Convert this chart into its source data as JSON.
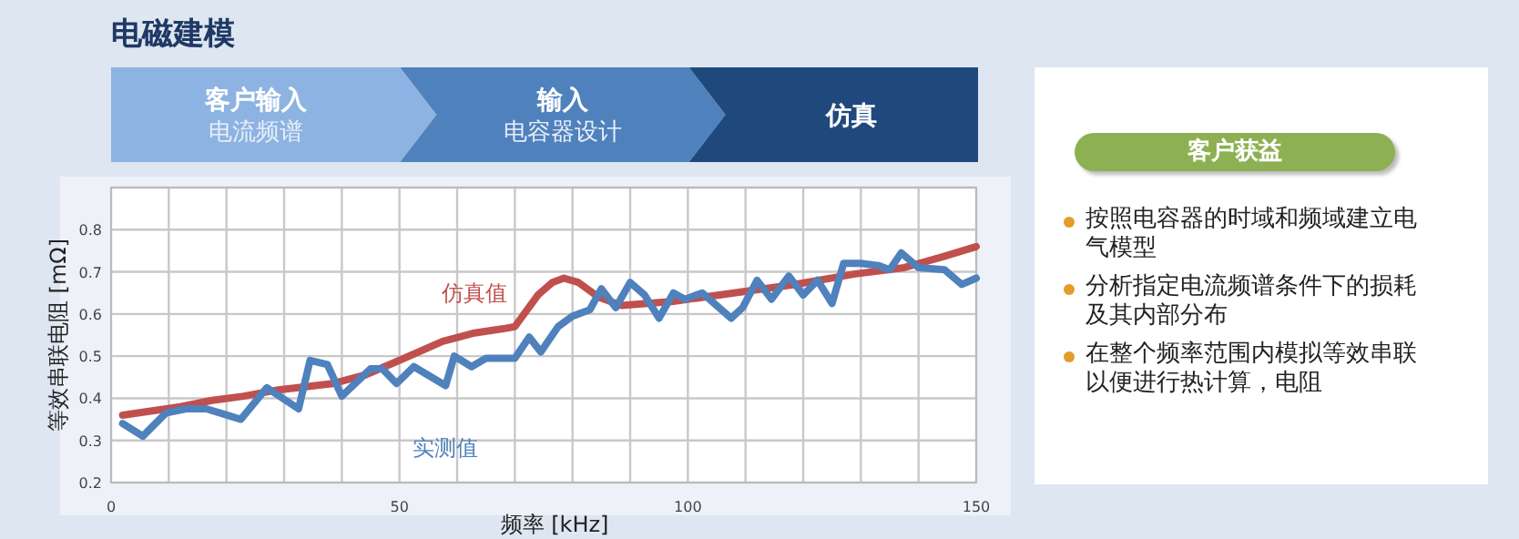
{
  "chart_data": [
    {
      "type": "other",
      "title": "电磁建模",
      "categories": [
        "客户输入",
        "输入",
        "仿真"
      ],
      "annotations": [
        "电流频谱",
        "电容器设计"
      ]
    },
    {
      "type": "line",
      "xlabel": "频率 [kHz]",
      "ylabel": "等效串联电阻 [mΩ]",
      "xlim": [
        0,
        150
      ],
      "ylim": [
        0.2,
        0.9
      ],
      "xticks": [
        0,
        {
          "value": 10,
          "label": null
        },
        {
          "value": 20,
          "label": null
        },
        {
          "value": 30,
          "label": null
        },
        {
          "value": 40,
          "label": null
        },
        50,
        {
          "value": 60,
          "label": null
        },
        {
          "value": 70,
          "label": null
        },
        {
          "value": 80,
          "label": null
        },
        {
          "value": 90,
          "label": null
        },
        100,
        {
          "value": 110,
          "label": null
        },
        {
          "value": 120,
          "label": null
        },
        {
          "value": 130,
          "label": null
        },
        {
          "value": 140,
          "label": null
        },
        150
      ],
      "yticks": [
        0.2,
        0.3,
        0.4,
        0.5,
        0.6,
        0.7,
        0.8,
        {
          "value": 0.9,
          "label": null
        }
      ],
      "grid": true,
      "marker": "none",
      "line_style": "solid",
      "series": [
        {
          "name": "仿真值",
          "color": "#c0504d",
          "x": [
            2,
            12,
            17.5,
            23,
            29,
            38.5,
            44,
            50,
            57.5,
            63,
            68,
            70,
            74,
            76.5,
            78.5,
            81,
            84.5,
            88.5,
            97.5,
            108,
            118.5,
            129,
            137.5,
            144,
            150
          ],
          "values": [
            0.36,
            0.38,
            0.395,
            0.405,
            0.42,
            0.435,
            0.455,
            0.49,
            0.535,
            0.555,
            0.565,
            0.57,
            0.645,
            0.675,
            0.685,
            0.675,
            0.64,
            0.62,
            0.63,
            0.65,
            0.67,
            0.695,
            0.71,
            0.735,
            0.76
          ]
        },
        {
          "name": "实测值",
          "color": "#4f81bd",
          "x": [
            2,
            5.5,
            9.5,
            13,
            16.5,
            22.5,
            27,
            32.5,
            34.5,
            37.5,
            40,
            45,
            47,
            49.5,
            52.5,
            58,
            59.5,
            62.5,
            65,
            69,
            70,
            72.5,
            74.5,
            77.5,
            80,
            83,
            85,
            87.5,
            90,
            92.5,
            95,
            97.5,
            99.5,
            102.5,
            107.5,
            109.5,
            112,
            114.5,
            117.5,
            120,
            122.5,
            125,
            127,
            130,
            133,
            135,
            137,
            140,
            144.5,
            147.5,
            150
          ],
          "values": [
            0.34,
            0.31,
            0.365,
            0.375,
            0.375,
            0.35,
            0.425,
            0.375,
            0.49,
            0.48,
            0.405,
            0.47,
            0.47,
            0.435,
            0.475,
            0.43,
            0.5,
            0.475,
            0.495,
            0.495,
            0.495,
            0.545,
            0.51,
            0.57,
            0.595,
            0.61,
            0.66,
            0.615,
            0.675,
            0.645,
            0.59,
            0.65,
            0.635,
            0.65,
            0.59,
            0.615,
            0.68,
            0.635,
            0.69,
            0.645,
            0.68,
            0.625,
            0.72,
            0.72,
            0.715,
            0.705,
            0.745,
            0.71,
            0.705,
            0.67,
            0.685
          ]
        }
      ]
    },
    {
      "type": "other",
      "title": "客户获益",
      "annotations": [
        "按照电容器的时域和频域建立电气模型",
        "分析指定电流频谱条件下的损耗及其内部分布",
        "在整个频率范围内模拟等效串联以便进行热计算，电阻"
      ]
    }
  ]
}
